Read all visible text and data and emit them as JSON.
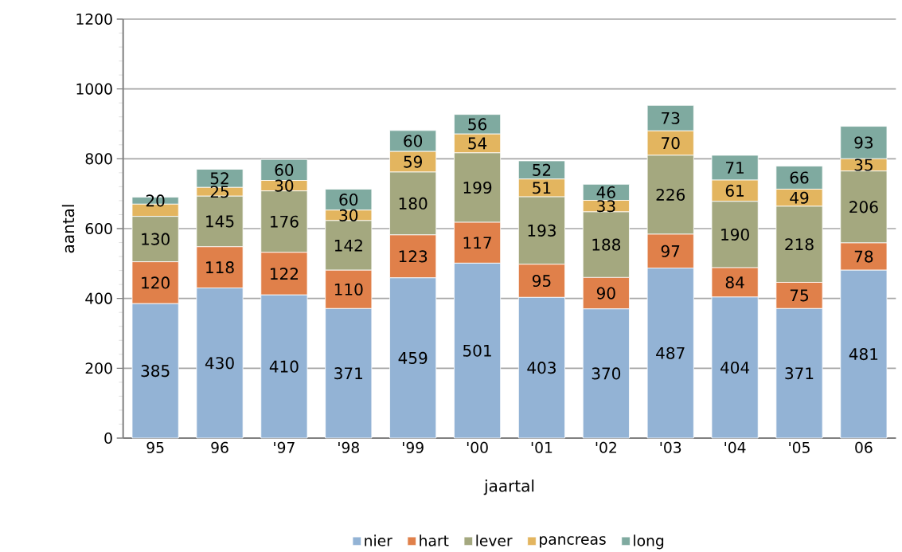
{
  "chart_data": {
    "type": "bar",
    "stacked": true,
    "xlabel": "jaartal",
    "ylabel": "aantal",
    "categories": [
      "95",
      "96",
      "'97",
      "'98",
      "'99",
      "'00",
      "'01",
      "'02",
      "'03",
      "'04",
      "'05",
      "06"
    ],
    "series": [
      {
        "name": "nier",
        "color": "#93b3d5",
        "values": [
          385,
          430,
          410,
          371,
          459,
          501,
          403,
          370,
          487,
          404,
          371,
          481
        ],
        "value_labels": [
          "385",
          "430",
          "410",
          "371",
          "459",
          "501",
          "403",
          "370",
          "487",
          "404",
          "371",
          "481"
        ]
      },
      {
        "name": "hart",
        "color": "#e0804a",
        "values": [
          120,
          118,
          122,
          110,
          123,
          117,
          95,
          90,
          97,
          84,
          75,
          78
        ],
        "value_labels": [
          "120",
          "118",
          "122",
          "110",
          "123",
          "117",
          "95",
          "90",
          "97",
          "84",
          "75",
          "78"
        ]
      },
      {
        "name": "lever",
        "color": "#a4a87f",
        "values": [
          130,
          145,
          176,
          142,
          180,
          199,
          193,
          188,
          226,
          190,
          218,
          206
        ],
        "value_labels": [
          "130",
          "145",
          "176",
          "142",
          "180",
          "199",
          "193",
          "188",
          "226",
          "190",
          "218",
          "206"
        ]
      },
      {
        "name": "pancreas",
        "color": "#e3b55f",
        "values": [
          35,
          25,
          30,
          30,
          59,
          54,
          51,
          33,
          70,
          61,
          49,
          35
        ],
        "value_labels": [
          null,
          "25",
          "30",
          "30",
          "59",
          "54",
          "51",
          "33",
          "70",
          "61",
          "49",
          "35"
        ]
      },
      {
        "name": "long",
        "color": "#7faaa0",
        "values": [
          20,
          52,
          60,
          60,
          60,
          56,
          52,
          46,
          73,
          71,
          66,
          93
        ],
        "value_labels": [
          "20",
          "52",
          "60",
          "60",
          "60",
          "56",
          "52",
          "46",
          "73",
          "71",
          "66",
          "93"
        ]
      }
    ],
    "ylim": [
      0,
      1200
    ],
    "yticks": [
      0,
      200,
      400,
      600,
      800,
      1000,
      1200
    ],
    "grid": "y",
    "legend": "bottom"
  }
}
